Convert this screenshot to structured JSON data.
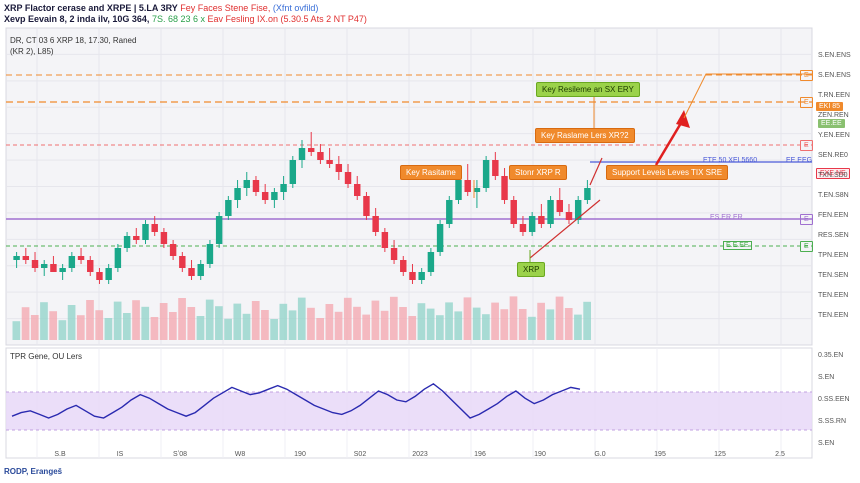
{
  "header": {
    "line1_title": "XRP Flactor cerase and XRPE | 5.LA 3RY",
    "line1_red": "Fey Faces Stene Fise,",
    "line1_blue": "(Xfnt ovfild)",
    "line2_title": "Xevp Eevain 8, 2 inda ilv, 10G 364,",
    "line2_green": "7S. 68 23 6 x",
    "line2_red": "Eav Fesling IX.on (5.30.5 Ats 2 NT P47)"
  },
  "chart_info": {
    "line1": "DR, CT 03 6 XRP 18, 17.30, Raned",
    "line2": "(KR 2), L85)"
  },
  "rsi_title": "TPR Gene, OU Lers",
  "footer": "RODP, Erangeš",
  "annotations": {
    "key_resistance_top": "Key Resileme an SX ERY",
    "key_resistance_mid": "Key Raslame Lers XR?2",
    "key_resistance_left": "Key Rasitame",
    "short_xrp": "Stonr XRP R",
    "support_levels": "Support Leveis Leves TIX SRE",
    "xrp_badge": "XRP"
  },
  "level_tags": {
    "orange_top": "E",
    "orange_2": "E",
    "orange_2_price": "EKI 85",
    "red_line": "E",
    "blue_line_left": "ETE 50 XEI 5660",
    "blue_line_right": "EE EEG",
    "blue_line_price": "EXE NE",
    "purple_line_left": "ES ER ER",
    "purple_line_right": "E",
    "green_line_left": "E.E.EE",
    "green_line_right": "E",
    "green_price": "EE.EE"
  },
  "price_axis": [
    "S.EN.ENS",
    "S.EN.ENS",
    "T.RN.EEN",
    "ZEN.REN",
    "Y.EN.EEN",
    "SEN.RE0",
    "TXN.SD0",
    "T.EN.S8N",
    "FEN.EEN",
    "RES.SEN",
    "TPN.EEN",
    "TEN.SEN",
    "TEN.EEN",
    "TEN.EEN"
  ],
  "rsi_axis": [
    "0.35.EN",
    "S.EN",
    "0.SS.EEN",
    "S.SS.RN",
    "S.EN"
  ],
  "x_axis": [
    "S.B",
    "IS",
    "Sʼ08",
    "W8",
    "190",
    "S02",
    "2023",
    "196",
    "190",
    "G.0",
    "195",
    "125",
    "2.5"
  ],
  "colors": {
    "up": "#1aa88a",
    "down": "#e8384a",
    "orange": "#f08a2c",
    "red_line": "#f07070",
    "blue_line": "#4a5ad8",
    "purple_line": "#a070d0",
    "green_line": "#4caf50",
    "rsi_line": "#2a2ab0",
    "rsi_band": "#e8d8f8"
  },
  "chart_data": {
    "type": "candlestick",
    "series": [
      {
        "name": "price",
        "ohlc": [
          [
            0.5,
            0.52,
            0.48,
            0.51
          ],
          [
            0.51,
            0.53,
            0.49,
            0.5
          ],
          [
            0.5,
            0.52,
            0.47,
            0.48
          ],
          [
            0.48,
            0.5,
            0.46,
            0.49
          ],
          [
            0.49,
            0.51,
            0.47,
            0.47
          ],
          [
            0.47,
            0.49,
            0.45,
            0.48
          ],
          [
            0.48,
            0.52,
            0.47,
            0.51
          ],
          [
            0.51,
            0.53,
            0.49,
            0.5
          ],
          [
            0.5,
            0.51,
            0.46,
            0.47
          ],
          [
            0.47,
            0.48,
            0.44,
            0.45
          ],
          [
            0.45,
            0.49,
            0.44,
            0.48
          ],
          [
            0.48,
            0.54,
            0.47,
            0.53
          ],
          [
            0.53,
            0.57,
            0.52,
            0.56
          ],
          [
            0.56,
            0.58,
            0.54,
            0.55
          ],
          [
            0.55,
            0.6,
            0.54,
            0.59
          ],
          [
            0.59,
            0.61,
            0.56,
            0.57
          ],
          [
            0.57,
            0.58,
            0.53,
            0.54
          ],
          [
            0.54,
            0.55,
            0.5,
            0.51
          ],
          [
            0.51,
            0.52,
            0.47,
            0.48
          ],
          [
            0.48,
            0.5,
            0.45,
            0.46
          ],
          [
            0.46,
            0.5,
            0.45,
            0.49
          ],
          [
            0.49,
            0.55,
            0.48,
            0.54
          ],
          [
            0.54,
            0.62,
            0.53,
            0.61
          ],
          [
            0.61,
            0.66,
            0.6,
            0.65
          ],
          [
            0.65,
            0.7,
            0.63,
            0.68
          ],
          [
            0.68,
            0.72,
            0.66,
            0.7
          ],
          [
            0.7,
            0.71,
            0.66,
            0.67
          ],
          [
            0.67,
            0.69,
            0.64,
            0.65
          ],
          [
            0.65,
            0.68,
            0.63,
            0.67
          ],
          [
            0.67,
            0.71,
            0.65,
            0.69
          ],
          [
            0.69,
            0.76,
            0.68,
            0.75
          ],
          [
            0.75,
            0.8,
            0.73,
            0.78
          ],
          [
            0.78,
            0.82,
            0.76,
            0.77
          ],
          [
            0.77,
            0.79,
            0.74,
            0.75
          ],
          [
            0.75,
            0.78,
            0.73,
            0.74
          ],
          [
            0.74,
            0.76,
            0.7,
            0.72
          ],
          [
            0.72,
            0.74,
            0.68,
            0.69
          ],
          [
            0.69,
            0.71,
            0.65,
            0.66
          ],
          [
            0.66,
            0.67,
            0.6,
            0.61
          ],
          [
            0.61,
            0.63,
            0.56,
            0.57
          ],
          [
            0.57,
            0.58,
            0.52,
            0.53
          ],
          [
            0.53,
            0.55,
            0.49,
            0.5
          ],
          [
            0.5,
            0.51,
            0.46,
            0.47
          ],
          [
            0.47,
            0.49,
            0.44,
            0.45
          ],
          [
            0.45,
            0.48,
            0.44,
            0.47
          ],
          [
            0.47,
            0.53,
            0.46,
            0.52
          ],
          [
            0.52,
            0.6,
            0.51,
            0.59
          ],
          [
            0.59,
            0.66,
            0.58,
            0.65
          ],
          [
            0.65,
            0.72,
            0.64,
            0.7
          ],
          [
            0.7,
            0.74,
            0.66,
            0.67
          ],
          [
            0.67,
            0.7,
            0.63,
            0.68
          ],
          [
            0.68,
            0.76,
            0.67,
            0.75
          ],
          [
            0.75,
            0.77,
            0.7,
            0.71
          ],
          [
            0.71,
            0.73,
            0.64,
            0.65
          ],
          [
            0.65,
            0.66,
            0.58,
            0.59
          ],
          [
            0.59,
            0.61,
            0.56,
            0.57
          ],
          [
            0.57,
            0.62,
            0.56,
            0.61
          ],
          [
            0.61,
            0.64,
            0.58,
            0.59
          ],
          [
            0.59,
            0.66,
            0.58,
            0.65
          ],
          [
            0.65,
            0.68,
            0.61,
            0.62
          ],
          [
            0.62,
            0.64,
            0.59,
            0.6
          ],
          [
            0.6,
            0.66,
            0.59,
            0.65
          ],
          [
            0.65,
            0.7,
            0.64,
            0.68
          ]
        ]
      },
      {
        "name": "rsi",
        "values": [
          32,
          36,
          38,
          34,
          30,
          34,
          40,
          44,
          38,
          32,
          30,
          36,
          42,
          50,
          56,
          52,
          46,
          40,
          36,
          32,
          36,
          44,
          52,
          58,
          64,
          60,
          56,
          58,
          62,
          66,
          62,
          56,
          50,
          44,
          40,
          36,
          34,
          38,
          44,
          52,
          60,
          56,
          50,
          48,
          54,
          62,
          68,
          60,
          50,
          40,
          30,
          34,
          40,
          46,
          54,
          60,
          52,
          46,
          50,
          56,
          60,
          64,
          62
        ]
      }
    ],
    "levels": [
      {
        "name": "Key Resileme an SX ERY",
        "value": 0.95
      },
      {
        "name": "Key Raslame Lers XR?2",
        "value": 0.88
      },
      {
        "name": "resistance_mid",
        "value": 0.8
      },
      {
        "name": "blue",
        "value": 0.72
      },
      {
        "name": "purple",
        "value": 0.62
      },
      {
        "name": "green",
        "value": 0.55
      }
    ],
    "ylim": [
      0.35,
      1.0
    ],
    "rsi_ylim": [
      0,
      100
    ]
  }
}
